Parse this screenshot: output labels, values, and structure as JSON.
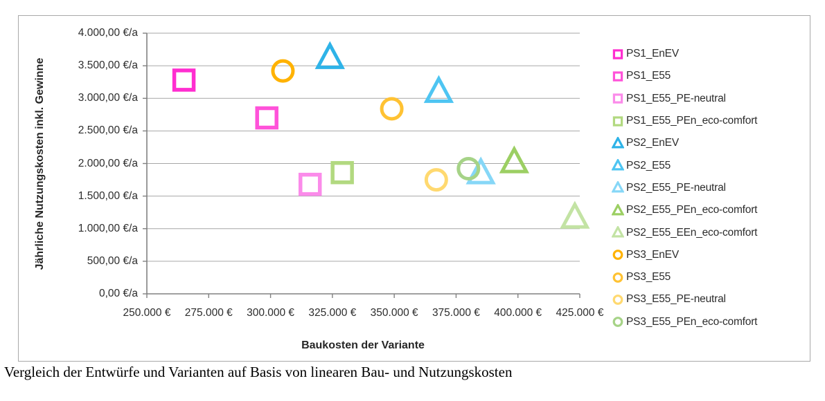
{
  "caption": "Vergleich der Entwürfe und Varianten auf Basis von linearen Bau- und Nutzungskosten",
  "chart_data": {
    "type": "scatter",
    "title": "",
    "xlabel": "Baukosten der Variante",
    "ylabel": "Jährliche Nutzungskosten inkl. Gewinne",
    "xlim": [
      250000,
      425000
    ],
    "ylim": [
      0,
      4000
    ],
    "grid": "horizontal",
    "legend_position": "right",
    "axis_color": "#808080",
    "grid_color": "#a6a6a6",
    "text_color": "#2c2c2c",
    "x_ticks": [
      250000,
      275000,
      300000,
      325000,
      350000,
      375000,
      400000,
      425000
    ],
    "x_tick_labels": [
      "250.000 €",
      "275.000 €",
      "300.000 €",
      "325.000 €",
      "350.000 €",
      "375.000 €",
      "400.000 €",
      "425.000 €"
    ],
    "y_ticks": [
      0,
      500,
      1000,
      1500,
      2000,
      2500,
      3000,
      3500,
      4000
    ],
    "y_tick_labels": [
      "0,00 €/a",
      "500,00 €/a",
      "1.000,00 €/a",
      "1.500,00 €/a",
      "2.000,00 €/a",
      "2.500,00 €/a",
      "3.000,00 €/a",
      "3.500,00 €/a",
      "4.000,00 €/a"
    ],
    "series": [
      {
        "name": "PS1_EnEV",
        "marker": "square",
        "color": "#ff2ed0",
        "x": 265000,
        "y": 3280
      },
      {
        "name": "PS1_E55",
        "marker": "square",
        "color": "#ff52d9",
        "x": 298500,
        "y": 2700
      },
      {
        "name": "PS1_E55_PE-neutral",
        "marker": "square",
        "color": "#fb8bea",
        "x": 316000,
        "y": 1680
      },
      {
        "name": "PS1_E55_PEn_eco-comfort",
        "marker": "square",
        "color": "#b2d980",
        "x": 329000,
        "y": 1860
      },
      {
        "name": "PS2_EnEV",
        "marker": "triangle",
        "color": "#2eb3e8",
        "x": 324000,
        "y": 3620
      },
      {
        "name": "PS2_E55",
        "marker": "triangle",
        "color": "#4ec5f2",
        "x": 368000,
        "y": 3100
      },
      {
        "name": "PS2_E55_PE-neutral",
        "marker": "triangle",
        "color": "#86d7f7",
        "x": 385000,
        "y": 1850
      },
      {
        "name": "PS2_E55_PEn_eco-comfort",
        "marker": "triangle",
        "color": "#9ccf63",
        "x": 398500,
        "y": 2020
      },
      {
        "name": "PS2_E55_EEn_eco-comfort",
        "marker": "triangle",
        "color": "#c3e3a4",
        "x": 423000,
        "y": 1170
      },
      {
        "name": "PS3_EnEV",
        "marker": "circle",
        "color": "#ffb200",
        "x": 305000,
        "y": 3420
      },
      {
        "name": "PS3_E55",
        "marker": "circle",
        "color": "#ffc233",
        "x": 349000,
        "y": 2840
      },
      {
        "name": "PS3_E55_PE-neutral",
        "marker": "circle",
        "color": "#ffd970",
        "x": 367000,
        "y": 1750
      },
      {
        "name": "PS3_E55_PEn_eco-comfort",
        "marker": "circle",
        "color": "#a6d387",
        "x": 380000,
        "y": 1920
      }
    ]
  }
}
